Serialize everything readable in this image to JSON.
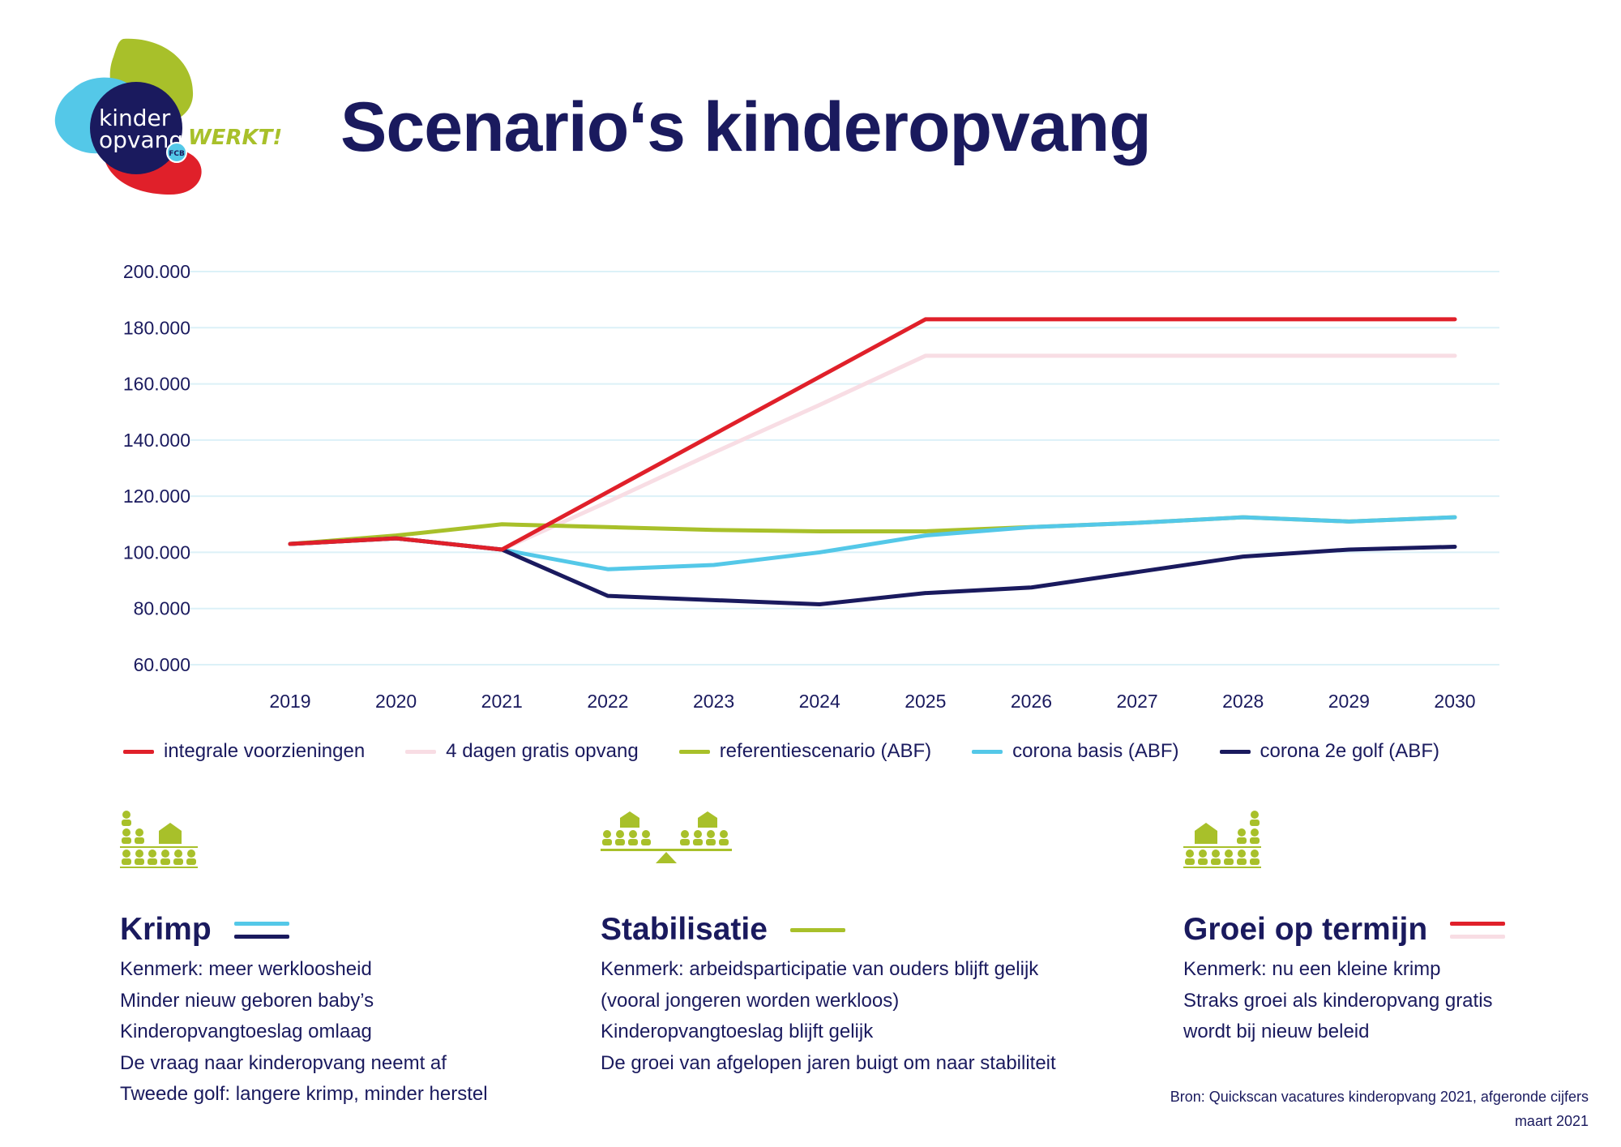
{
  "logo": {
    "line1": "kinder",
    "line2": "opvang",
    "suffix": "WERKT!",
    "badge": "FCB"
  },
  "title": "Scenario‘s kinderopvang",
  "colors": {
    "navy": "#1a1a5e",
    "red": "#e0202a",
    "pink": "#f8dde4",
    "green": "#a8c02a",
    "light_blue": "#54c8e8",
    "grid": "#dcf1f8"
  },
  "chart_data": {
    "type": "line",
    "title": "",
    "xlabel": "",
    "ylabel": "",
    "x": [
      "2019",
      "2020",
      "2021",
      "2022",
      "2023",
      "2024",
      "2025",
      "2026",
      "2027",
      "2028",
      "2029",
      "2030"
    ],
    "ylim": [
      60000,
      200000
    ],
    "yticks": [
      60000,
      80000,
      100000,
      120000,
      140000,
      160000,
      180000,
      200000
    ],
    "ytick_labels": [
      "60.000",
      "80.000",
      "100.000",
      "120.000",
      "140.000",
      "160.000",
      "180.000",
      "200.000"
    ],
    "grid": "horizontal",
    "legend_position": "bottom",
    "series": [
      {
        "name": "integrale voorzieningen",
        "color": "#e0202a",
        "values": [
          103000,
          105000,
          101000,
          121500,
          142000,
          162500,
          183000,
          183000,
          183000,
          183000,
          183000,
          183000
        ]
      },
      {
        "name": "4 dagen gratis opvang",
        "color": "#f8dde4",
        "values": [
          103000,
          105000,
          101000,
          118000,
          135500,
          152500,
          170000,
          170000,
          170000,
          170000,
          170000,
          170000
        ]
      },
      {
        "name": "referentiescenario (ABF)",
        "color": "#a8c02a",
        "values": [
          103000,
          106000,
          110000,
          109000,
          108000,
          107500,
          107500,
          109000,
          110500,
          112500,
          111000,
          112500
        ]
      },
      {
        "name": "corona basis (ABF)",
        "color": "#54c8e8",
        "values": [
          103000,
          105000,
          101000,
          94000,
          95500,
          100000,
          106000,
          109000,
          110500,
          112500,
          111000,
          112500
        ]
      },
      {
        "name": "corona 2e golf (ABF)",
        "color": "#1a1a5e",
        "values": [
          103000,
          105000,
          101000,
          84500,
          83000,
          81500,
          85500,
          87500,
          93000,
          98500,
          101000,
          102000
        ]
      }
    ]
  },
  "columns": [
    {
      "heading": "Krimp",
      "lines_colors": [
        "#54c8e8",
        "#1a1a5e"
      ],
      "items": [
        "Kenmerk: meer werkloosheid",
        "Minder nieuw geboren baby’s",
        "Kinderopvangtoeslag omlaag",
        "De vraag naar kinderopvang neemt af",
        "Tweede golf: langere krimp, minder herstel"
      ]
    },
    {
      "heading": "Stabilisatie",
      "lines_colors": [
        "#a8c02a"
      ],
      "items": [
        "Kenmerk: arbeidsparticipatie van ouders blijft gelijk",
        "(vooral jongeren worden werkloos)",
        "Kinderopvangtoeslag blijft gelijk",
        "De groei van afgelopen jaren buigt om naar stabiliteit"
      ]
    },
    {
      "heading": "Groei op termijn",
      "lines_colors": [
        "#e0202a",
        "#f8dde4"
      ],
      "items": [
        "Kenmerk: nu een kleine krimp",
        "Straks groei als kinderopvang gratis",
        "wordt bij nieuw beleid"
      ]
    }
  ],
  "source": {
    "line1": "Bron: Quickscan vacatures kinderopvang 2021, afgeronde cijfers",
    "line2": "maart 2021"
  },
  "icons": {
    "logo": "kinderopvang-werkt-logo",
    "col1": "people-and-building-icon",
    "col2": "balance-scale-icon",
    "col3": "building-and-people-icon"
  }
}
